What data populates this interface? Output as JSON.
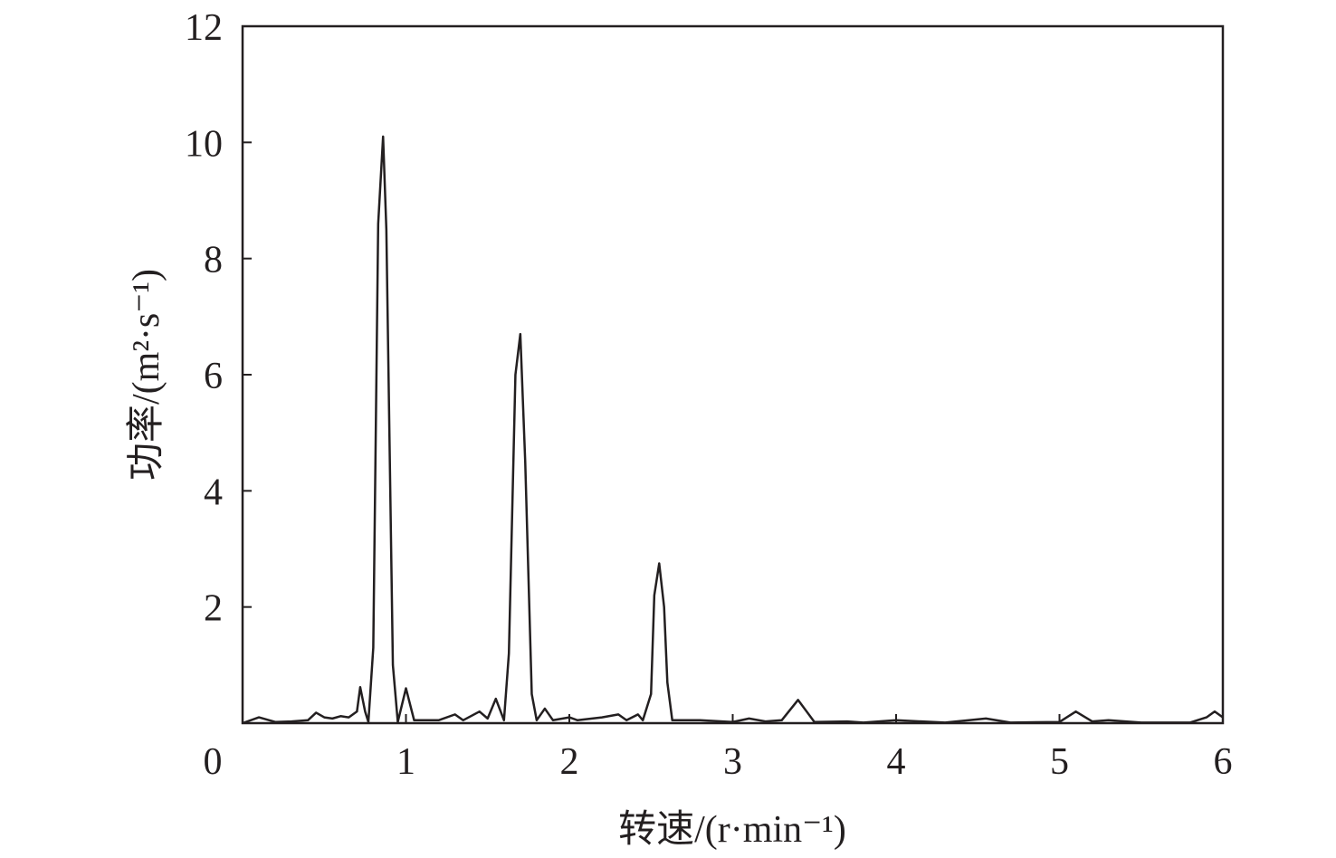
{
  "chart_data": {
    "type": "line",
    "x_label": "转速/(r·min⁻¹)",
    "y_label": "功率/(m²·s⁻¹)",
    "xlim": [
      0,
      6
    ],
    "xticks": [
      0,
      1,
      2,
      3,
      4,
      5,
      6
    ],
    "ylim": [
      0,
      12
    ],
    "yticks": [
      2,
      4,
      6,
      8,
      10,
      12
    ],
    "series": [
      {
        "color": "#231f20",
        "x": [
          0,
          0.1,
          0.2,
          0.3,
          0.4,
          0.45,
          0.5,
          0.55,
          0.6,
          0.65,
          0.7,
          0.72,
          0.75,
          0.77,
          0.8,
          0.83,
          0.86,
          0.88,
          0.92,
          0.95,
          1.0,
          1.05,
          1.1,
          1.2,
          1.3,
          1.35,
          1.45,
          1.5,
          1.55,
          1.6,
          1.63,
          1.67,
          1.7,
          1.73,
          1.77,
          1.8,
          1.85,
          1.9,
          2.0,
          2.05,
          2.2,
          2.3,
          2.35,
          2.42,
          2.45,
          2.5,
          2.52,
          2.55,
          2.58,
          2.6,
          2.63,
          2.7,
          2.8,
          3.0,
          3.1,
          3.2,
          3.3,
          3.4,
          3.5,
          3.7,
          3.8,
          4.0,
          4.3,
          4.55,
          4.7,
          5.0,
          5.1,
          5.2,
          5.3,
          5.5,
          5.8,
          5.9,
          5.95,
          6.0
        ],
        "values": [
          0,
          0.1,
          0.02,
          0.03,
          0.05,
          0.18,
          0.1,
          0.08,
          0.12,
          0.1,
          0.2,
          0.62,
          0.2,
          0.02,
          1.3,
          8.6,
          10.1,
          8.5,
          1.0,
          0.02,
          0.6,
          0.05,
          0.05,
          0.05,
          0.15,
          0.05,
          0.2,
          0.08,
          0.42,
          0.05,
          1.2,
          6.0,
          6.7,
          4.5,
          0.5,
          0.05,
          0.25,
          0.05,
          0.1,
          0.05,
          0.1,
          0.15,
          0.05,
          0.15,
          0.05,
          0.5,
          2.2,
          2.75,
          2.0,
          0.7,
          0.05,
          0.05,
          0.05,
          0.02,
          0.08,
          0.03,
          0.05,
          0.4,
          0.02,
          0.03,
          0.01,
          0.05,
          0.01,
          0.08,
          0.01,
          0.02,
          0.2,
          0.03,
          0.05,
          0.01,
          0.01,
          0.1,
          0.2,
          0.1
        ]
      }
    ]
  }
}
